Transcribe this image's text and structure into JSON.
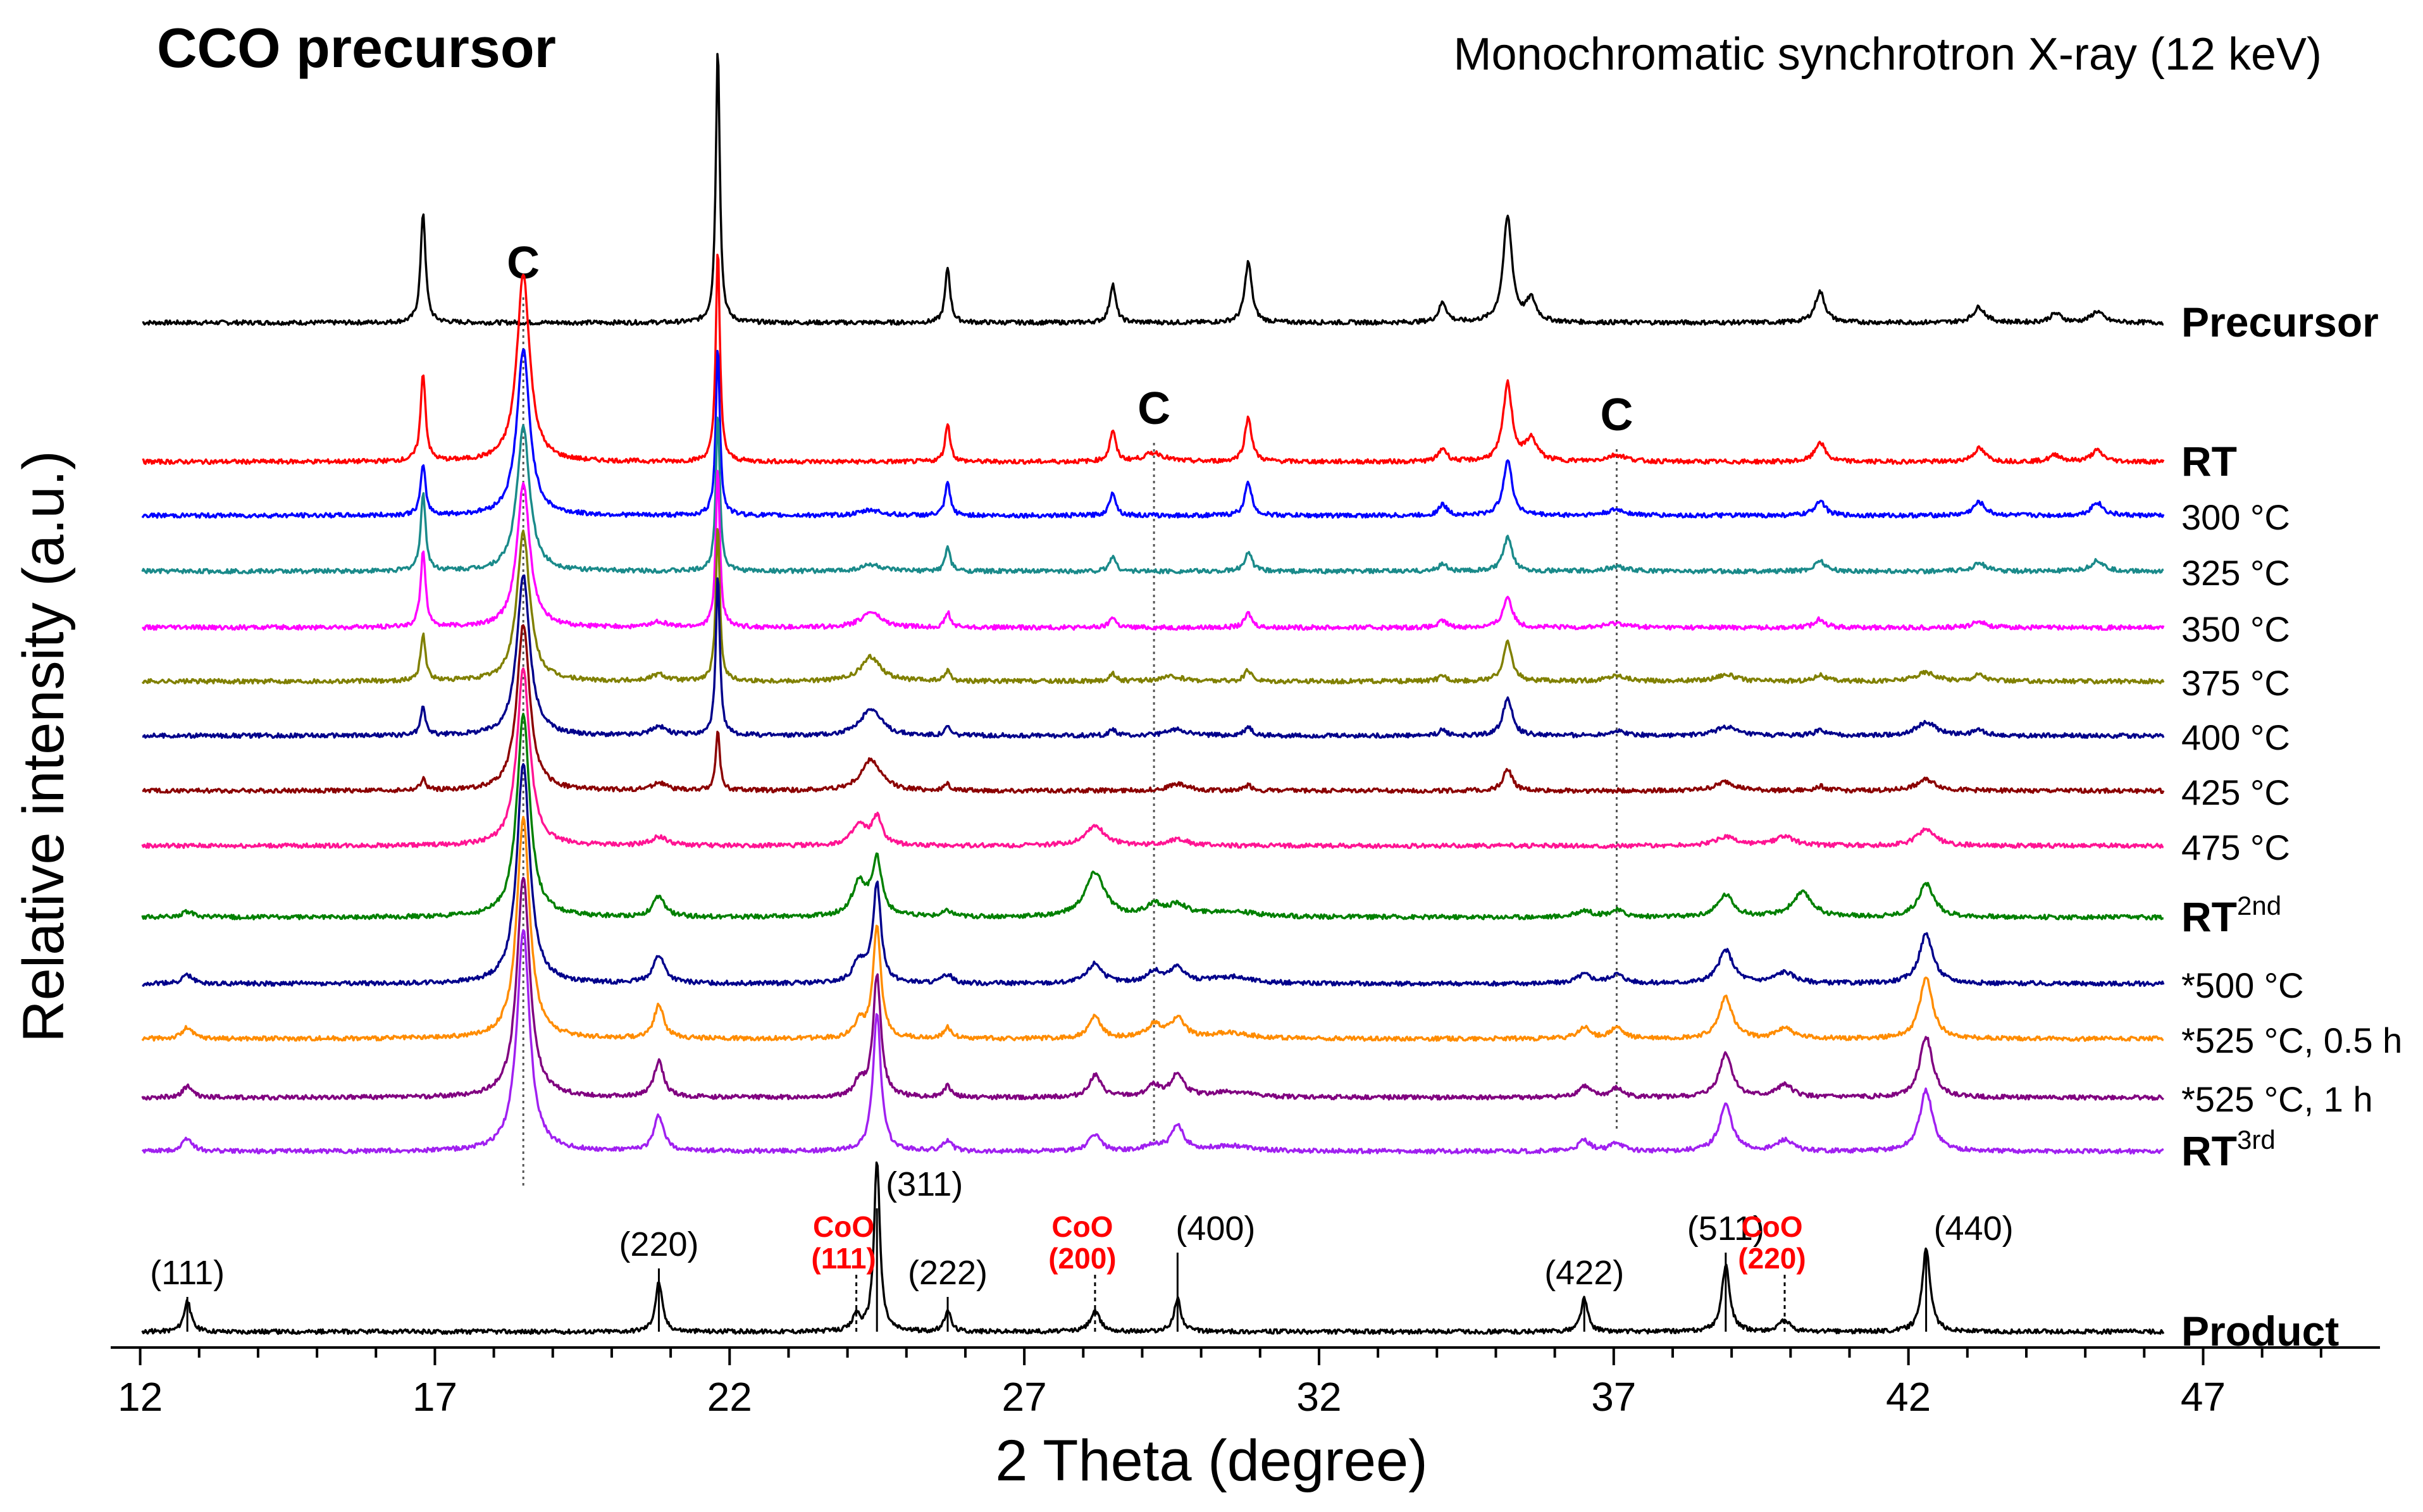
{
  "chart_data": {
    "type": "line",
    "title": "CCO precursor",
    "subtitle": "Monochromatic synchrotron X-ray (12 keV)",
    "xlabel": "2 Theta (degree)",
    "ylabel": "Relative intensity (a.u.)",
    "xlim": [
      11.5,
      50.0
    ],
    "xticks": [
      12,
      17,
      22,
      27,
      32,
      37,
      42,
      47
    ],
    "xtick_labels": [
      "12",
      "17",
      "22",
      "27",
      "32",
      "37",
      "42",
      "47"
    ],
    "grid": false,
    "carbon_marker": {
      "label": "C",
      "positions": [
        18.5,
        29.2,
        37.05
      ]
    },
    "series": [
      {
        "name": "Precursor",
        "label": "Precursor",
        "bold": true,
        "color": "#000000",
        "peaks": [
          [
            16.8,
            1.0,
            0.05
          ],
          [
            18.5,
            0.0,
            0.1
          ],
          [
            21.8,
            2.5,
            0.04
          ],
          [
            25.7,
            0.5,
            0.05
          ],
          [
            28.5,
            0.35,
            0.06
          ],
          [
            30.8,
            0.55,
            0.07
          ],
          [
            34.1,
            0.18,
            0.08
          ],
          [
            35.2,
            0.95,
            0.09
          ],
          [
            35.6,
            0.2,
            0.1
          ],
          [
            40.5,
            0.28,
            0.1
          ],
          [
            43.2,
            0.14,
            0.12
          ],
          [
            44.5,
            0.08,
            0.12
          ],
          [
            45.2,
            0.1,
            0.12
          ]
        ]
      },
      {
        "name": "RT",
        "label": "RT",
        "bold": true,
        "color": "#ff0000",
        "peaks": [
          [
            16.8,
            0.8,
            0.05
          ],
          [
            18.5,
            1.7,
            0.13
          ],
          [
            21.8,
            1.95,
            0.04
          ],
          [
            25.7,
            0.35,
            0.05
          ],
          [
            28.5,
            0.28,
            0.06
          ],
          [
            29.2,
            0.08,
            0.2
          ],
          [
            30.8,
            0.4,
            0.07
          ],
          [
            34.1,
            0.12,
            0.08
          ],
          [
            35.2,
            0.7,
            0.09
          ],
          [
            35.6,
            0.2,
            0.12
          ],
          [
            37.05,
            0.06,
            0.2
          ],
          [
            40.5,
            0.18,
            0.1
          ],
          [
            43.2,
            0.12,
            0.12
          ],
          [
            44.5,
            0.06,
            0.12
          ],
          [
            45.2,
            0.1,
            0.12
          ]
        ]
      },
      {
        "name": "300 C",
        "label": "300 °C",
        "bold": false,
        "color": "#0000ff",
        "peaks": [
          [
            16.8,
            0.45,
            0.05
          ],
          [
            18.5,
            1.5,
            0.13
          ],
          [
            21.8,
            1.55,
            0.04
          ],
          [
            24.4,
            0.05,
            0.2
          ],
          [
            25.7,
            0.3,
            0.05
          ],
          [
            28.5,
            0.22,
            0.06
          ],
          [
            30.8,
            0.3,
            0.07
          ],
          [
            34.1,
            0.1,
            0.08
          ],
          [
            35.2,
            0.5,
            0.09
          ],
          [
            37.05,
            0.05,
            0.2
          ],
          [
            40.5,
            0.14,
            0.1
          ],
          [
            43.2,
            0.12,
            0.12
          ],
          [
            45.2,
            0.12,
            0.12
          ]
        ]
      },
      {
        "name": "325 C",
        "label": "325 °C",
        "bold": false,
        "color": "#1a8a8a",
        "peaks": [
          [
            16.8,
            0.7,
            0.05
          ],
          [
            18.5,
            1.3,
            0.13
          ],
          [
            21.8,
            1.45,
            0.04
          ],
          [
            24.4,
            0.06,
            0.2
          ],
          [
            25.7,
            0.22,
            0.05
          ],
          [
            28.5,
            0.14,
            0.06
          ],
          [
            30.8,
            0.18,
            0.07
          ],
          [
            34.1,
            0.07,
            0.08
          ],
          [
            35.2,
            0.3,
            0.09
          ],
          [
            37.05,
            0.04,
            0.2
          ],
          [
            40.5,
            0.1,
            0.1
          ],
          [
            43.2,
            0.08,
            0.12
          ],
          [
            45.2,
            0.1,
            0.12
          ]
        ]
      },
      {
        "name": "350 C",
        "label": "350 °C",
        "bold": false,
        "color": "#ff00ff",
        "peaks": [
          [
            16.8,
            0.7,
            0.05
          ],
          [
            18.5,
            1.3,
            0.13
          ],
          [
            21.8,
            1.45,
            0.04
          ],
          [
            20.8,
            0.05,
            0.15
          ],
          [
            24.4,
            0.14,
            0.2
          ],
          [
            25.7,
            0.14,
            0.05
          ],
          [
            28.5,
            0.1,
            0.06
          ],
          [
            30.8,
            0.13,
            0.07
          ],
          [
            34.1,
            0.06,
            0.08
          ],
          [
            35.2,
            0.28,
            0.09
          ],
          [
            37.05,
            0.04,
            0.2
          ],
          [
            40.5,
            0.08,
            0.1
          ],
          [
            43.2,
            0.06,
            0.12
          ]
        ]
      },
      {
        "name": "375 C",
        "label": "375 °C",
        "bold": false,
        "color": "#808000",
        "peaks": [
          [
            16.8,
            0.42,
            0.05
          ],
          [
            18.5,
            1.35,
            0.13
          ],
          [
            20.8,
            0.06,
            0.15
          ],
          [
            21.8,
            1.4,
            0.04
          ],
          [
            24.4,
            0.22,
            0.2
          ],
          [
            25.7,
            0.1,
            0.05
          ],
          [
            28.5,
            0.07,
            0.06
          ],
          [
            29.5,
            0.04,
            0.25
          ],
          [
            30.8,
            0.1,
            0.07
          ],
          [
            34.1,
            0.05,
            0.08
          ],
          [
            35.2,
            0.35,
            0.09
          ],
          [
            37.05,
            0.05,
            0.2
          ],
          [
            38.9,
            0.06,
            0.2
          ],
          [
            40.5,
            0.06,
            0.1
          ],
          [
            42.3,
            0.08,
            0.2
          ],
          [
            43.2,
            0.06,
            0.12
          ]
        ]
      },
      {
        "name": "400 C",
        "label": "400 °C",
        "bold": false,
        "color": "#00008b",
        "peaks": [
          [
            16.8,
            0.25,
            0.05
          ],
          [
            18.5,
            1.45,
            0.13
          ],
          [
            20.8,
            0.08,
            0.15
          ],
          [
            21.8,
            1.45,
            0.04
          ],
          [
            24.4,
            0.25,
            0.2
          ],
          [
            25.7,
            0.08,
            0.05
          ],
          [
            28.5,
            0.06,
            0.06
          ],
          [
            29.6,
            0.06,
            0.2
          ],
          [
            30.8,
            0.08,
            0.07
          ],
          [
            34.1,
            0.05,
            0.08
          ],
          [
            35.2,
            0.35,
            0.09
          ],
          [
            37.05,
            0.04,
            0.2
          ],
          [
            38.9,
            0.08,
            0.2
          ],
          [
            40.5,
            0.05,
            0.1
          ],
          [
            42.3,
            0.12,
            0.2
          ],
          [
            43.2,
            0.05,
            0.12
          ]
        ]
      },
      {
        "name": "425 C",
        "label": "425 °C",
        "bold": false,
        "color": "#8b0000",
        "peaks": [
          [
            16.8,
            0.1,
            0.05
          ],
          [
            18.5,
            1.5,
            0.13
          ],
          [
            20.8,
            0.07,
            0.15
          ],
          [
            21.8,
            0.55,
            0.04
          ],
          [
            24.4,
            0.28,
            0.2
          ],
          [
            25.7,
            0.06,
            0.05
          ],
          [
            29.6,
            0.06,
            0.2
          ],
          [
            30.8,
            0.05,
            0.07
          ],
          [
            35.2,
            0.2,
            0.09
          ],
          [
            38.9,
            0.08,
            0.2
          ],
          [
            40.5,
            0.04,
            0.1
          ],
          [
            42.3,
            0.1,
            0.2
          ]
        ]
      },
      {
        "name": "475 C",
        "label": "475 °C",
        "bold": false,
        "color": "#ff1493",
        "peaks": [
          [
            18.5,
            1.6,
            0.13
          ],
          [
            20.8,
            0.08,
            0.15
          ],
          [
            24.2,
            0.18,
            0.15
          ],
          [
            24.5,
            0.25,
            0.1
          ],
          [
            28.2,
            0.18,
            0.2
          ],
          [
            29.6,
            0.06,
            0.2
          ],
          [
            38.9,
            0.08,
            0.2
          ],
          [
            39.9,
            0.08,
            0.2
          ],
          [
            42.3,
            0.15,
            0.18
          ]
        ]
      },
      {
        "name": "RT 2nd",
        "label": "RT",
        "label_sup": "2nd",
        "bold": true,
        "color": "#008000",
        "peaks": [
          [
            12.8,
            0.05,
            0.12
          ],
          [
            18.5,
            1.85,
            0.13
          ],
          [
            20.8,
            0.18,
            0.12
          ],
          [
            24.2,
            0.3,
            0.15
          ],
          [
            24.5,
            0.5,
            0.1
          ],
          [
            25.7,
            0.05,
            0.1
          ],
          [
            28.2,
            0.4,
            0.2
          ],
          [
            29.2,
            0.1,
            0.15
          ],
          [
            29.6,
            0.1,
            0.2
          ],
          [
            30.5,
            0.05,
            0.5
          ],
          [
            36.5,
            0.06,
            0.15
          ],
          [
            37.05,
            0.06,
            0.15
          ],
          [
            38.9,
            0.2,
            0.16
          ],
          [
            40.2,
            0.22,
            0.2
          ],
          [
            42.3,
            0.3,
            0.16
          ]
        ]
      },
      {
        "name": "*500 C",
        "label": "*500 °C",
        "bold": false,
        "color": "#00008b",
        "peaks": [
          [
            12.8,
            0.08,
            0.1
          ],
          [
            18.5,
            2.0,
            0.13
          ],
          [
            20.8,
            0.25,
            0.12
          ],
          [
            24.2,
            0.2,
            0.12
          ],
          [
            24.5,
            0.9,
            0.08
          ],
          [
            25.7,
            0.08,
            0.1
          ],
          [
            28.2,
            0.18,
            0.15
          ],
          [
            29.2,
            0.1,
            0.15
          ],
          [
            29.6,
            0.14,
            0.15
          ],
          [
            30.5,
            0.06,
            0.4
          ],
          [
            36.5,
            0.08,
            0.15
          ],
          [
            37.05,
            0.08,
            0.15
          ],
          [
            38.9,
            0.3,
            0.15
          ],
          [
            39.9,
            0.1,
            0.2
          ],
          [
            42.3,
            0.45,
            0.14
          ]
        ]
      },
      {
        "name": "*525 C, 0.5 h",
        "label": "*525 °C, 0.5 h",
        "bold": false,
        "color": "#ff8c00",
        "peaks": [
          [
            12.8,
            0.1,
            0.1
          ],
          [
            18.5,
            2.0,
            0.13
          ],
          [
            20.8,
            0.3,
            0.1
          ],
          [
            24.2,
            0.15,
            0.1
          ],
          [
            24.5,
            1.0,
            0.08
          ],
          [
            25.7,
            0.1,
            0.08
          ],
          [
            28.2,
            0.2,
            0.12
          ],
          [
            29.2,
            0.12,
            0.15
          ],
          [
            29.6,
            0.18,
            0.14
          ],
          [
            30.5,
            0.05,
            0.4
          ],
          [
            36.5,
            0.1,
            0.12
          ],
          [
            37.05,
            0.1,
            0.12
          ],
          [
            38.9,
            0.38,
            0.13
          ],
          [
            39.9,
            0.1,
            0.15
          ],
          [
            42.3,
            0.55,
            0.13
          ]
        ]
      },
      {
        "name": "*525 C, 1 h",
        "label": "*525 °C, 1 h",
        "bold": false,
        "color": "#800080",
        "peaks": [
          [
            12.8,
            0.1,
            0.1
          ],
          [
            18.5,
            2.0,
            0.13
          ],
          [
            20.8,
            0.32,
            0.1
          ],
          [
            24.2,
            0.14,
            0.1
          ],
          [
            24.5,
            1.1,
            0.08
          ],
          [
            25.7,
            0.1,
            0.08
          ],
          [
            28.2,
            0.2,
            0.12
          ],
          [
            29.2,
            0.1,
            0.15
          ],
          [
            29.6,
            0.2,
            0.13
          ],
          [
            30.5,
            0.05,
            0.4
          ],
          [
            36.5,
            0.1,
            0.12
          ],
          [
            37.05,
            0.08,
            0.12
          ],
          [
            38.9,
            0.4,
            0.13
          ],
          [
            39.9,
            0.12,
            0.15
          ],
          [
            42.3,
            0.55,
            0.13
          ]
        ]
      },
      {
        "name": "RT 3rd",
        "label": "RT",
        "label_sup": "3rd",
        "bold": true,
        "color": "#a020f0",
        "peaks": [
          [
            12.8,
            0.12,
            0.1
          ],
          [
            18.5,
            2.0,
            0.13
          ],
          [
            20.8,
            0.32,
            0.1
          ],
          [
            24.5,
            1.25,
            0.08
          ],
          [
            25.7,
            0.1,
            0.08
          ],
          [
            28.2,
            0.15,
            0.12
          ],
          [
            29.2,
            0.05,
            0.15
          ],
          [
            29.6,
            0.22,
            0.13
          ],
          [
            30.5,
            0.05,
            0.4
          ],
          [
            36.5,
            0.1,
            0.12
          ],
          [
            37.05,
            0.08,
            0.12
          ],
          [
            38.9,
            0.42,
            0.13
          ],
          [
            39.9,
            0.1,
            0.15
          ],
          [
            42.3,
            0.55,
            0.13
          ]
        ]
      },
      {
        "name": "Product",
        "label": "Product",
        "bold": true,
        "color": "#000000",
        "peaks": [
          [
            12.8,
            0.28,
            0.07
          ],
          [
            20.8,
            0.45,
            0.07
          ],
          [
            24.15,
            0.15,
            0.07
          ],
          [
            24.5,
            1.55,
            0.06
          ],
          [
            25.7,
            0.2,
            0.06
          ],
          [
            28.2,
            0.18,
            0.1
          ],
          [
            29.6,
            0.3,
            0.07
          ],
          [
            36.5,
            0.3,
            0.07
          ],
          [
            38.9,
            0.6,
            0.08
          ],
          [
            39.9,
            0.1,
            0.1
          ],
          [
            42.3,
            0.75,
            0.08
          ]
        ]
      }
    ],
    "reflections": [
      {
        "hkl": "(111)",
        "x": 12.8
      },
      {
        "hkl": "(220)",
        "x": 20.8
      },
      {
        "hkl": "(311)",
        "x": 24.5
      },
      {
        "hkl": "(222)",
        "x": 25.7
      },
      {
        "hkl": "(400)",
        "x": 29.6
      },
      {
        "hkl": "(422)",
        "x": 36.5
      },
      {
        "hkl": "(511)",
        "x": 38.9
      },
      {
        "hkl": "(440)",
        "x": 42.3
      }
    ],
    "coo_reflections": [
      {
        "label": "CoO",
        "hkl": "(111)",
        "x": 24.15
      },
      {
        "label": "CoO",
        "hkl": "(200)",
        "x": 28.2
      },
      {
        "label": "CoO",
        "hkl": "(220)",
        "x": 39.9
      }
    ],
    "coo_color": "#ff0000",
    "unit_suffix": "°C"
  }
}
